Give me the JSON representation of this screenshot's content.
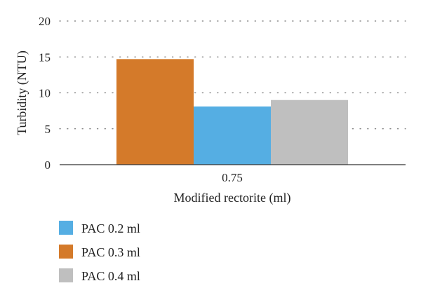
{
  "chart_data": {
    "type": "bar",
    "title": "",
    "categories": [
      "0.75"
    ],
    "series": [
      {
        "name": "PAC 0.2 ml",
        "values": [
          8.1
        ],
        "color": "#55aee3"
      },
      {
        "name": "PAC 0.3 ml",
        "values": [
          14.7
        ],
        "color": "#d47a2a"
      },
      {
        "name": "PAC 0.4 ml",
        "values": [
          9.0
        ],
        "color": "#bfbfbf"
      }
    ],
    "bar_order": [
      "PAC 0.3 ml",
      "PAC 0.2 ml",
      "PAC 0.4 ml"
    ],
    "xlabel": "Modified rectorite (ml)",
    "ylabel": "Turbidity (NTU)",
    "ylim": [
      0,
      20
    ],
    "yticks": [
      0,
      5,
      10,
      15,
      20
    ],
    "grid": "dotted horizontal",
    "legend": "bottom-left"
  }
}
